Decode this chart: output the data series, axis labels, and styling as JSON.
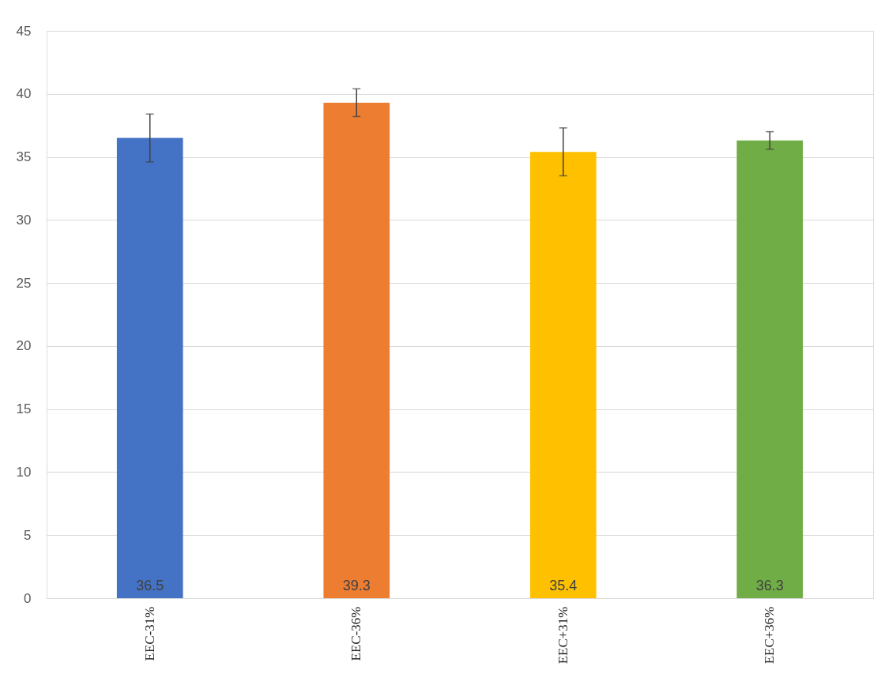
{
  "chart_data": {
    "type": "bar",
    "categories": [
      "EEC-31%",
      "EEC-36%",
      "EEC+31%",
      "EEC+36%"
    ],
    "values": [
      36.5,
      39.3,
      35.4,
      36.3
    ],
    "colors": [
      "#4472c4",
      "#ed7d31",
      "#ffc000",
      "#70ad47"
    ],
    "errors": [
      [
        34.6,
        38.4
      ],
      [
        38.2,
        40.4
      ],
      [
        33.5,
        37.3
      ],
      [
        35.6,
        37.0
      ]
    ],
    "ylim": [
      0,
      45
    ],
    "yticks": [
      0,
      5,
      10,
      15,
      20,
      25,
      30,
      35,
      40,
      45
    ],
    "grid": "y",
    "data_labels": true
  }
}
